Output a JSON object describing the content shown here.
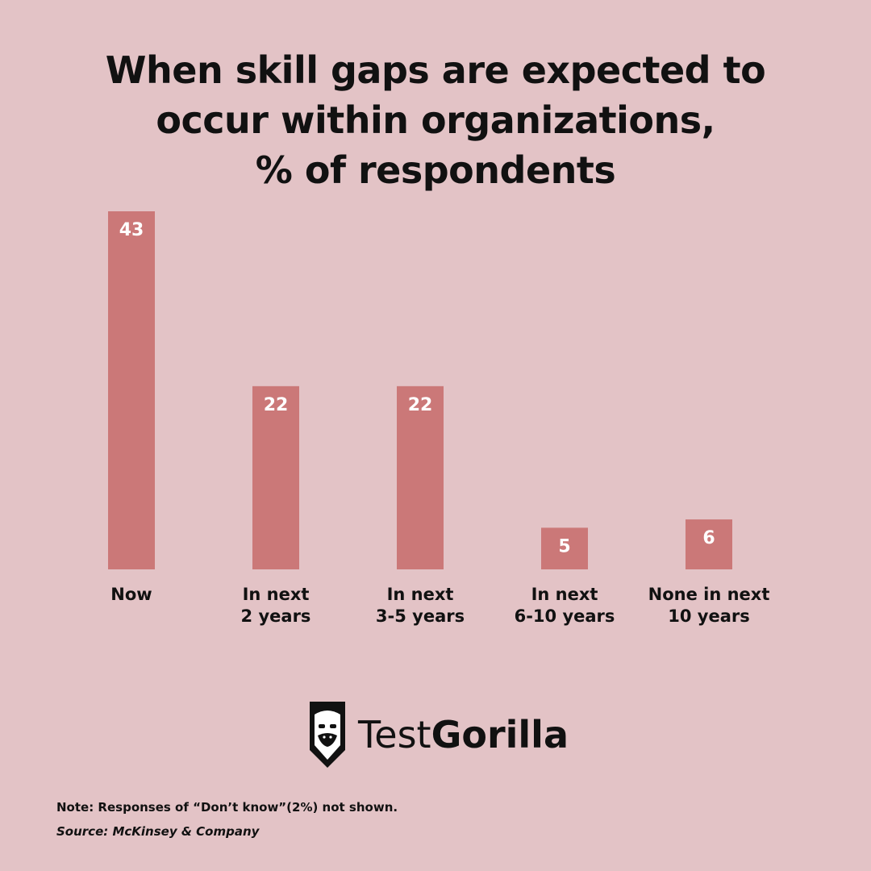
{
  "title_lines": [
    "When skill gaps are expected to",
    "occur within organizations,",
    "% of respondents"
  ],
  "chart_data": {
    "type": "bar",
    "categories": [
      [
        "Now"
      ],
      [
        "In next",
        "2 years"
      ],
      [
        "In next",
        "3-5 years"
      ],
      [
        "In next",
        "6-10 years"
      ],
      [
        "None in next",
        "10 years"
      ]
    ],
    "values": [
      43,
      22,
      22,
      5,
      6
    ],
    "ylim": [
      0,
      43
    ],
    "grid": false,
    "data_labels": true,
    "bar_color": "#cb7878",
    "label_color": "#ffffff"
  },
  "logo": {
    "name": "testgorilla-logo",
    "text_light": "Test",
    "text_bold": "Gorilla"
  },
  "note": "Note: Responses of “Don’t know”(2%) not shown.",
  "source": "Source: McKinsey & Company",
  "colors": {
    "background": "#e3c3c6",
    "text": "#111111",
    "bar": "#cb7878"
  }
}
